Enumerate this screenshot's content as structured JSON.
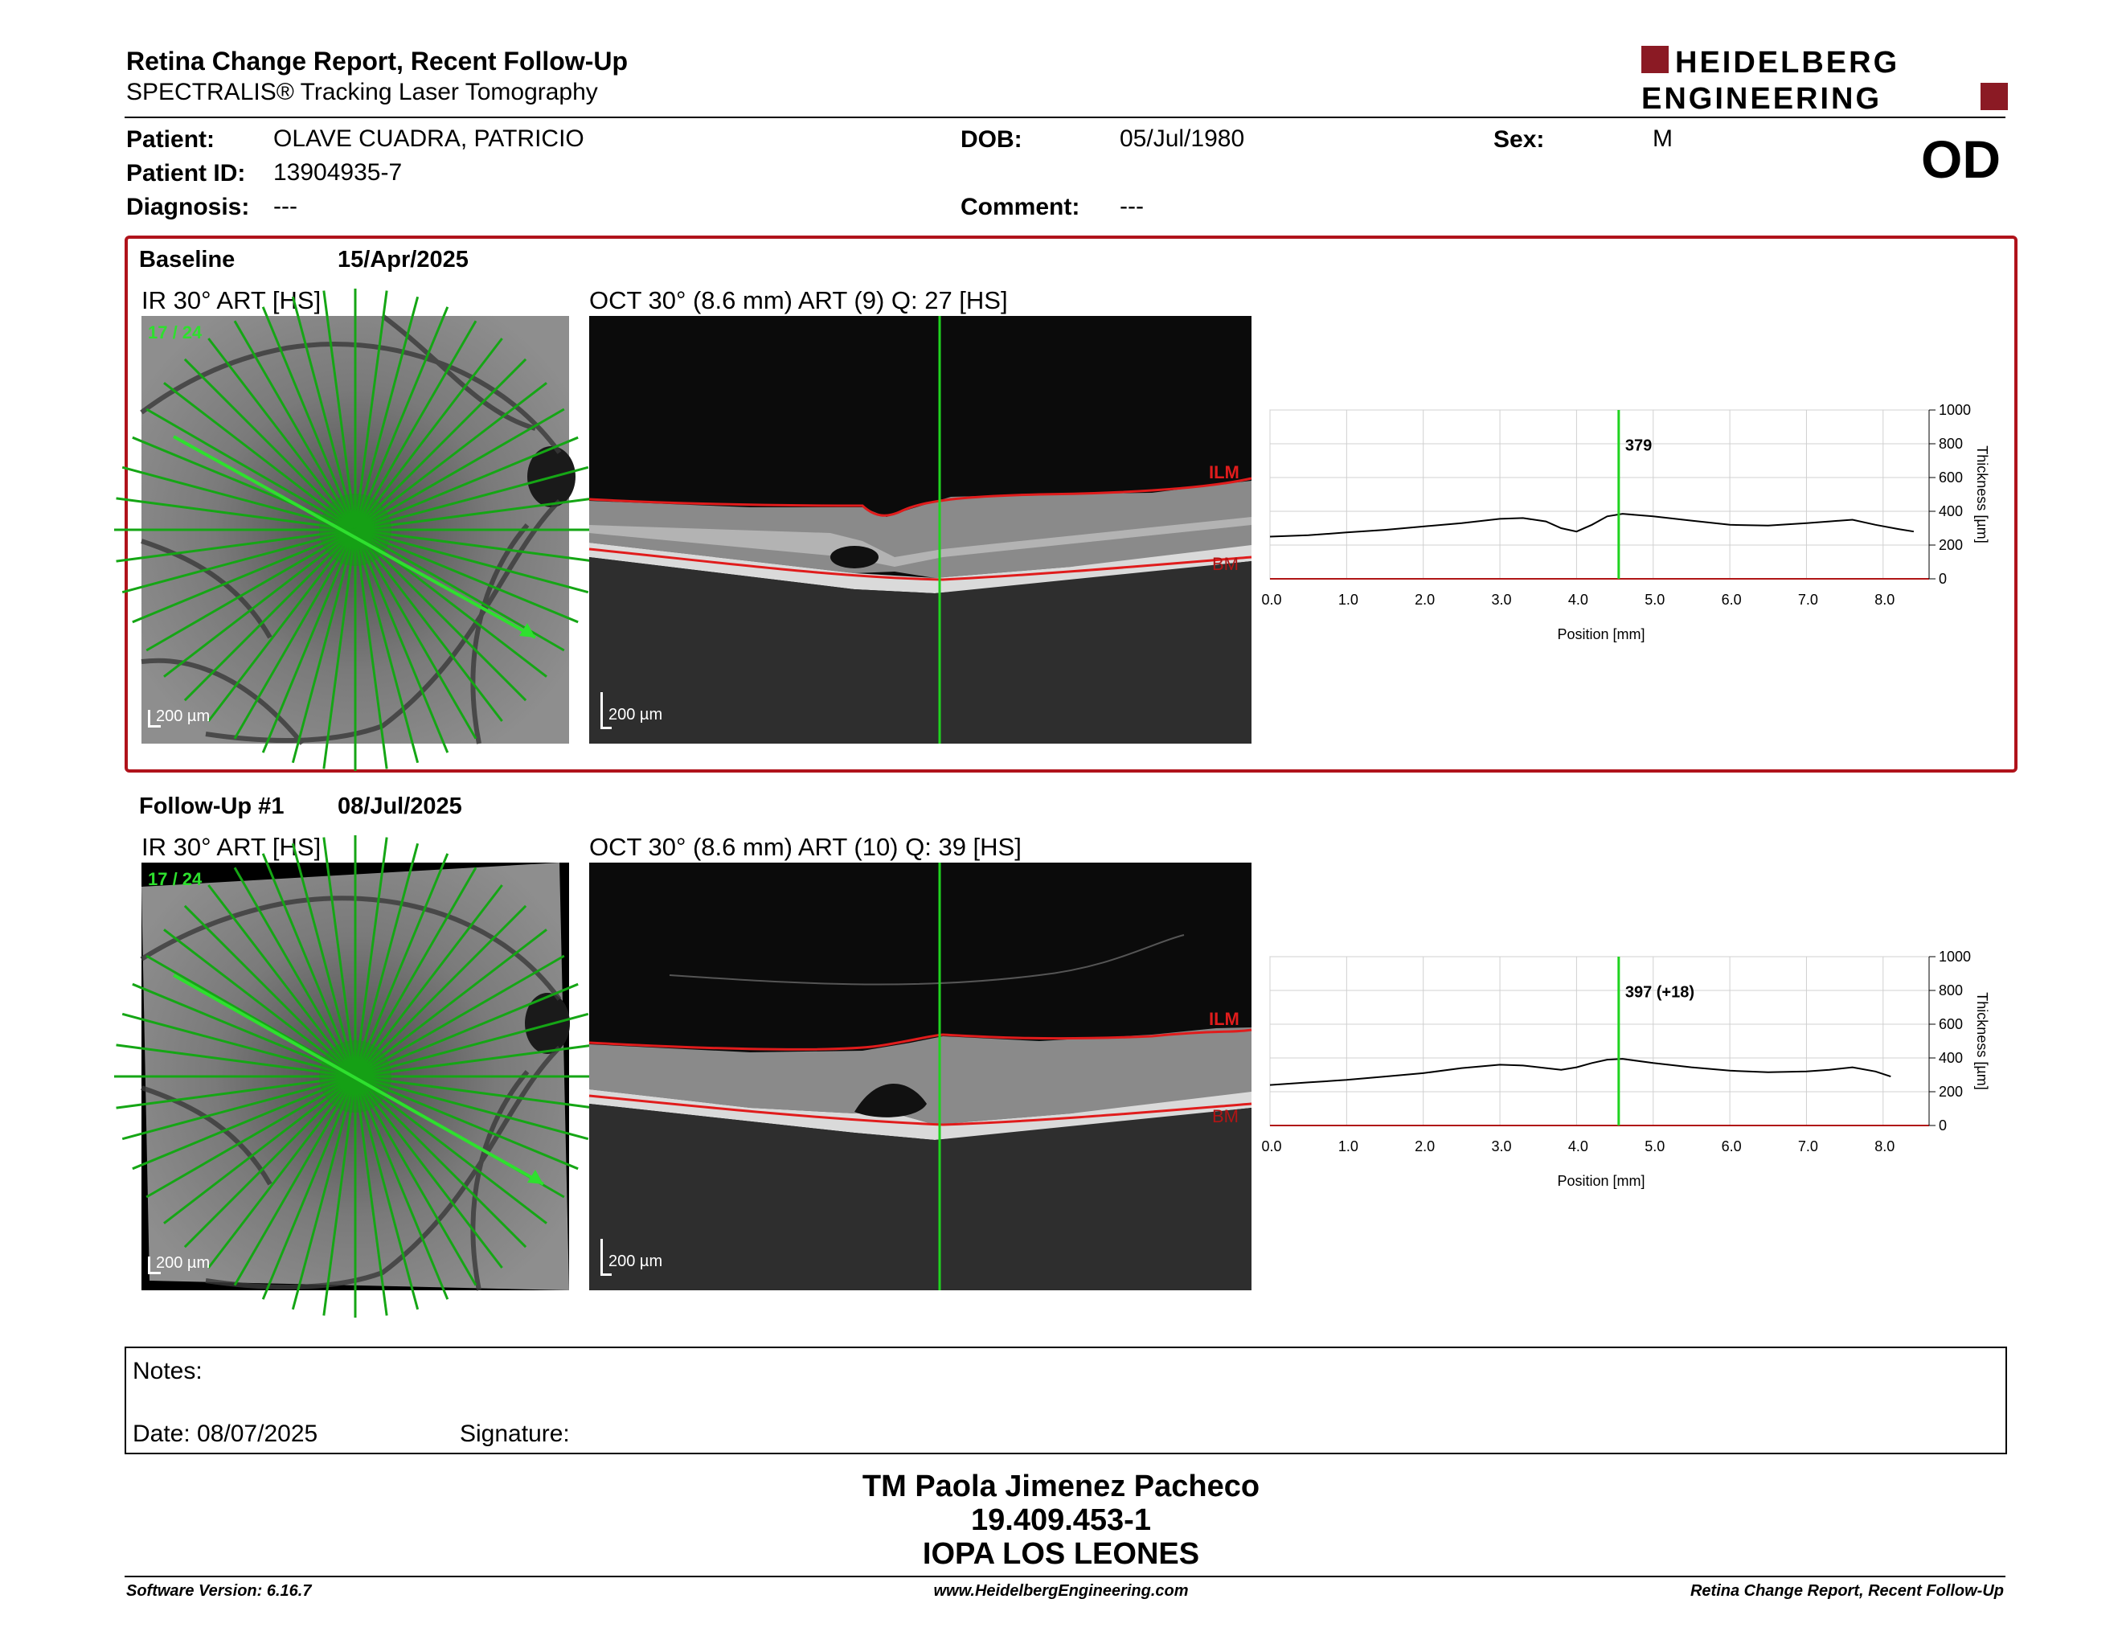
{
  "header": {
    "title": "Retina Change Report, Recent Follow-Up",
    "subtitle": "SPECTRALIS® Tracking Laser Tomography",
    "logo_line1": "HEIDELBERG",
    "logo_line2": "ENGINEERING"
  },
  "patient": {
    "patient_label": "Patient:",
    "patient_value": "OLAVE CUADRA, PATRICIO",
    "id_label": "Patient ID:",
    "id_value": "13904935-7",
    "diagnosis_label": "Diagnosis:",
    "diagnosis_value": "---",
    "dob_label": "DOB:",
    "dob_value": "05/Jul/1980",
    "comment_label": "Comment:",
    "comment_value": "---",
    "sex_label": "Sex:",
    "sex_value": "M",
    "eye": "OD"
  },
  "baseline": {
    "label": "Baseline",
    "date": "15/Apr/2025",
    "ir_title": "IR 30° ART [HS]",
    "oct_title": "OCT 30° (8.6 mm) ART (9) Q: 27 [HS]",
    "scan_index": "17 / 24",
    "scale_ir": "200 µm",
    "scale_oct": "200 µm",
    "ilm": "ILM",
    "bm": "BM"
  },
  "followup": {
    "label": "Follow-Up #1",
    "date": "08/Jul/2025",
    "ir_title": "IR 30° ART [HS]",
    "oct_title": "OCT 30° (8.6 mm) ART (10) Q: 39 [HS]",
    "scan_index": "17 / 24",
    "scale_ir": "200 µm",
    "scale_oct": "200 µm",
    "ilm": "ILM",
    "bm": "BM"
  },
  "chart_data": [
    {
      "type": "line",
      "xlabel": "Position [mm]",
      "ylabel": "Thickness [µm]",
      "xlim": [
        0,
        8.6
      ],
      "ylim": [
        0,
        1000
      ],
      "xticks": [
        "0.0",
        "1.0",
        "2.0",
        "3.0",
        "4.0",
        "5.0",
        "6.0",
        "7.0",
        "8.0"
      ],
      "yticks": [
        "0",
        "200",
        "400",
        "600",
        "800",
        "1000"
      ],
      "cursor_x": 4.55,
      "cursor_label": "379",
      "grid": true,
      "series": [
        {
          "x": [
            0,
            0.5,
            1,
            1.5,
            2,
            2.5,
            3,
            3.3,
            3.6,
            3.8,
            4,
            4.2,
            4.4,
            4.6,
            5,
            5.5,
            6,
            6.5,
            7,
            7.3,
            7.6,
            7.9,
            8.2,
            8.4
          ],
          "y": [
            250,
            258,
            275,
            290,
            310,
            330,
            355,
            360,
            340,
            300,
            280,
            320,
            370,
            385,
            370,
            345,
            320,
            315,
            330,
            340,
            350,
            320,
            295,
            280
          ]
        }
      ]
    },
    {
      "type": "line",
      "xlabel": "Position [mm]",
      "ylabel": "Thickness [µm]",
      "xlim": [
        0,
        8.6
      ],
      "ylim": [
        0,
        1000
      ],
      "xticks": [
        "0.0",
        "1.0",
        "2.0",
        "3.0",
        "4.0",
        "5.0",
        "6.0",
        "7.0",
        "8.0"
      ],
      "yticks": [
        "0",
        "200",
        "400",
        "600",
        "800",
        "1000"
      ],
      "cursor_x": 4.55,
      "cursor_label": "397 (+18)",
      "grid": true,
      "series": [
        {
          "x": [
            0,
            0.5,
            1,
            1.5,
            2,
            2.5,
            3,
            3.3,
            3.6,
            3.8,
            4,
            4.2,
            4.4,
            4.6,
            5,
            5.5,
            6,
            6.5,
            7,
            7.3,
            7.6,
            7.9,
            8.1
          ],
          "y": [
            240,
            255,
            270,
            290,
            310,
            340,
            360,
            355,
            340,
            330,
            345,
            370,
            390,
            395,
            370,
            345,
            325,
            315,
            320,
            330,
            345,
            320,
            290
          ]
        }
      ]
    }
  ],
  "notes": {
    "label": "Notes:",
    "date_label": "Date: 08/07/2025",
    "signature_label": "Signature:"
  },
  "signer": {
    "name": "TM Paola Jimenez Pacheco",
    "id": "19.409.453-1",
    "org": "IOPA LOS LEONES"
  },
  "footer": {
    "left": "Software Version: 6.16.7",
    "center": "www.HeidelbergEngineering.com",
    "right": "Retina Change Report, Recent Follow-Up"
  }
}
